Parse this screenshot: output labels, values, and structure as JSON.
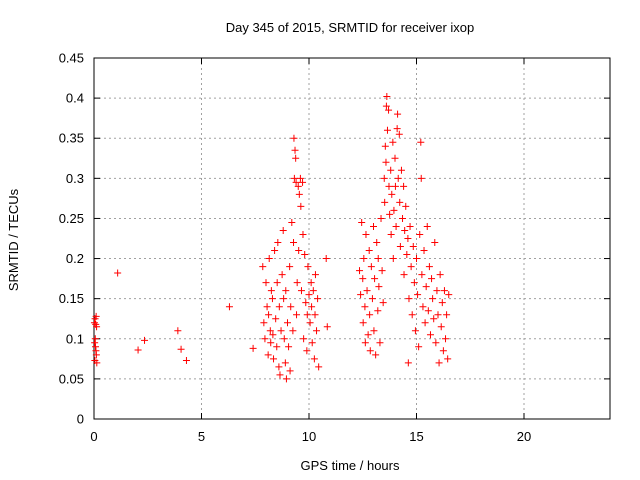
{
  "chart_data": {
    "type": "scatter",
    "title": "Day 345 of 2015, SRMTID for receiver ixop",
    "xlabel": "GPS time / hours",
    "ylabel": "SRMTID / TECUs",
    "xlim": [
      0,
      24
    ],
    "ylim": [
      0,
      0.45
    ],
    "xticks": [
      0,
      5,
      10,
      15,
      20
    ],
    "yticks": [
      0,
      0.05,
      0.1,
      0.15,
      0.2,
      0.25,
      0.3,
      0.35,
      0.4,
      0.45
    ],
    "x_tick_labels": [
      "0",
      "5",
      "10",
      "15",
      "20"
    ],
    "y_tick_labels": [
      "0",
      "0.05",
      "0.1",
      "0.15",
      "0.2",
      "0.25",
      "0.3",
      "0.35",
      "0.4",
      "0.45"
    ],
    "grid": true,
    "marker": "+",
    "color": "#ff0000",
    "series": [
      {
        "name": "SRMTID",
        "points": [
          [
            0.02,
            0.12
          ],
          [
            0.05,
            0.125
          ],
          [
            0.08,
            0.118
          ],
          [
            0.1,
            0.128
          ],
          [
            0.12,
            0.115
          ],
          [
            0.03,
            0.095
          ],
          [
            0.06,
            0.1
          ],
          [
            0.09,
            0.085
          ],
          [
            0.11,
            0.08
          ],
          [
            0.04,
            0.073
          ],
          [
            0.13,
            0.07
          ],
          [
            0.07,
            0.09
          ],
          [
            1.1,
            0.182
          ],
          [
            2.05,
            0.086
          ],
          [
            2.35,
            0.098
          ],
          [
            3.9,
            0.11
          ],
          [
            4.05,
            0.087
          ],
          [
            4.3,
            0.073
          ],
          [
            6.3,
            0.14
          ],
          [
            7.4,
            0.088
          ],
          [
            7.85,
            0.19
          ],
          [
            7.9,
            0.12
          ],
          [
            7.95,
            0.1
          ],
          [
            8.0,
            0.17
          ],
          [
            8.05,
            0.14
          ],
          [
            8.1,
            0.08
          ],
          [
            8.12,
            0.13
          ],
          [
            8.15,
            0.2
          ],
          [
            8.2,
            0.11
          ],
          [
            8.22,
            0.095
          ],
          [
            8.25,
            0.16
          ],
          [
            8.3,
            0.15
          ],
          [
            8.32,
            0.105
          ],
          [
            8.35,
            0.075
          ],
          [
            8.4,
            0.21
          ],
          [
            8.45,
            0.125
          ],
          [
            8.5,
            0.09
          ],
          [
            8.52,
            0.17
          ],
          [
            8.55,
            0.22
          ],
          [
            8.6,
            0.065
          ],
          [
            8.62,
            0.14
          ],
          [
            8.65,
            0.055
          ],
          [
            8.7,
            0.11
          ],
          [
            8.75,
            0.18
          ],
          [
            8.8,
            0.235
          ],
          [
            8.82,
            0.15
          ],
          [
            8.85,
            0.1
          ],
          [
            8.9,
            0.07
          ],
          [
            8.92,
            0.16
          ],
          [
            8.95,
            0.05
          ],
          [
            9.0,
            0.12
          ],
          [
            9.05,
            0.09
          ],
          [
            9.1,
            0.19
          ],
          [
            9.12,
            0.06
          ],
          [
            9.15,
            0.14
          ],
          [
            9.2,
            0.245
          ],
          [
            9.25,
            0.11
          ],
          [
            9.28,
            0.22
          ],
          [
            9.3,
            0.35
          ],
          [
            9.32,
            0.3
          ],
          [
            9.35,
            0.335
          ],
          [
            9.38,
            0.325
          ],
          [
            9.4,
            0.295
          ],
          [
            9.42,
            0.13
          ],
          [
            9.45,
            0.17
          ],
          [
            9.5,
            0.29
          ],
          [
            9.52,
            0.21
          ],
          [
            9.55,
            0.28
          ],
          [
            9.6,
            0.3
          ],
          [
            9.62,
            0.265
          ],
          [
            9.65,
            0.16
          ],
          [
            9.7,
            0.295
          ],
          [
            9.72,
            0.23
          ],
          [
            9.75,
            0.1
          ],
          [
            9.8,
            0.205
          ],
          [
            9.85,
            0.145
          ],
          [
            9.9,
            0.085
          ],
          [
            9.92,
            0.13
          ],
          [
            9.95,
            0.19
          ],
          [
            10.0,
            0.155
          ],
          [
            10.05,
            0.12
          ],
          [
            10.1,
            0.17
          ],
          [
            10.12,
            0.14
          ],
          [
            10.15,
            0.095
          ],
          [
            10.2,
            0.16
          ],
          [
            10.25,
            0.075
          ],
          [
            10.28,
            0.13
          ],
          [
            10.3,
            0.18
          ],
          [
            10.35,
            0.11
          ],
          [
            10.4,
            0.15
          ],
          [
            10.45,
            0.065
          ],
          [
            10.8,
            0.2
          ],
          [
            10.85,
            0.115
          ],
          [
            12.35,
            0.185
          ],
          [
            12.4,
            0.155
          ],
          [
            12.45,
            0.245
          ],
          [
            12.5,
            0.175
          ],
          [
            12.52,
            0.12
          ],
          [
            12.55,
            0.2
          ],
          [
            12.6,
            0.14
          ],
          [
            12.62,
            0.095
          ],
          [
            12.65,
            0.23
          ],
          [
            12.7,
            0.16
          ],
          [
            12.75,
            0.105
          ],
          [
            12.8,
            0.21
          ],
          [
            12.82,
            0.13
          ],
          [
            12.85,
            0.085
          ],
          [
            12.9,
            0.19
          ],
          [
            12.95,
            0.15
          ],
          [
            13.0,
            0.24
          ],
          [
            13.02,
            0.11
          ],
          [
            13.05,
            0.175
          ],
          [
            13.1,
            0.08
          ],
          [
            13.15,
            0.22
          ],
          [
            13.2,
            0.135
          ],
          [
            13.22,
            0.2
          ],
          [
            13.25,
            0.165
          ],
          [
            13.3,
            0.095
          ],
          [
            13.35,
            0.25
          ],
          [
            13.4,
            0.185
          ],
          [
            13.45,
            0.145
          ],
          [
            13.5,
            0.3
          ],
          [
            13.52,
            0.27
          ],
          [
            13.55,
            0.34
          ],
          [
            13.58,
            0.32
          ],
          [
            13.6,
            0.39
          ],
          [
            13.62,
            0.402
          ],
          [
            13.65,
            0.36
          ],
          [
            13.7,
            0.385
          ],
          [
            13.72,
            0.29
          ],
          [
            13.75,
            0.255
          ],
          [
            13.8,
            0.31
          ],
          [
            13.82,
            0.23
          ],
          [
            13.85,
            0.28
          ],
          [
            13.9,
            0.345
          ],
          [
            13.92,
            0.2
          ],
          [
            13.95,
            0.26
          ],
          [
            14.0,
            0.325
          ],
          [
            14.02,
            0.29
          ],
          [
            14.05,
            0.24
          ],
          [
            14.1,
            0.362
          ],
          [
            14.12,
            0.38
          ],
          [
            14.15,
            0.3
          ],
          [
            14.2,
            0.355
          ],
          [
            14.22,
            0.27
          ],
          [
            14.25,
            0.215
          ],
          [
            14.3,
            0.31
          ],
          [
            14.35,
            0.25
          ],
          [
            14.4,
            0.29
          ],
          [
            14.42,
            0.18
          ],
          [
            14.45,
            0.235
          ],
          [
            14.5,
            0.265
          ],
          [
            14.55,
            0.205
          ],
          [
            14.6,
            0.225
          ],
          [
            14.62,
            0.07
          ],
          [
            14.65,
            0.15
          ],
          [
            14.7,
            0.24
          ],
          [
            14.75,
            0.19
          ],
          [
            14.8,
            0.13
          ],
          [
            14.85,
            0.215
          ],
          [
            14.9,
            0.17
          ],
          [
            14.95,
            0.11
          ],
          [
            15.0,
            0.2
          ],
          [
            15.05,
            0.155
          ],
          [
            15.1,
            0.09
          ],
          [
            15.15,
            0.23
          ],
          [
            15.2,
            0.345
          ],
          [
            15.22,
            0.3
          ],
          [
            15.25,
            0.18
          ],
          [
            15.3,
            0.14
          ],
          [
            15.35,
            0.21
          ],
          [
            15.4,
            0.12
          ],
          [
            15.45,
            0.165
          ],
          [
            15.5,
            0.24
          ],
          [
            15.55,
            0.135
          ],
          [
            15.6,
            0.19
          ],
          [
            15.65,
            0.105
          ],
          [
            15.7,
            0.175
          ],
          [
            15.75,
            0.15
          ],
          [
            15.8,
            0.125
          ],
          [
            15.85,
            0.22
          ],
          [
            15.9,
            0.095
          ],
          [
            15.95,
            0.16
          ],
          [
            16.0,
            0.13
          ],
          [
            16.05,
            0.07
          ],
          [
            16.1,
            0.18
          ],
          [
            16.15,
            0.115
          ],
          [
            16.2,
            0.145
          ],
          [
            16.25,
            0.085
          ],
          [
            16.3,
            0.16
          ],
          [
            16.35,
            0.1
          ],
          [
            16.4,
            0.13
          ],
          [
            16.45,
            0.075
          ],
          [
            16.5,
            0.155
          ]
        ]
      }
    ]
  }
}
